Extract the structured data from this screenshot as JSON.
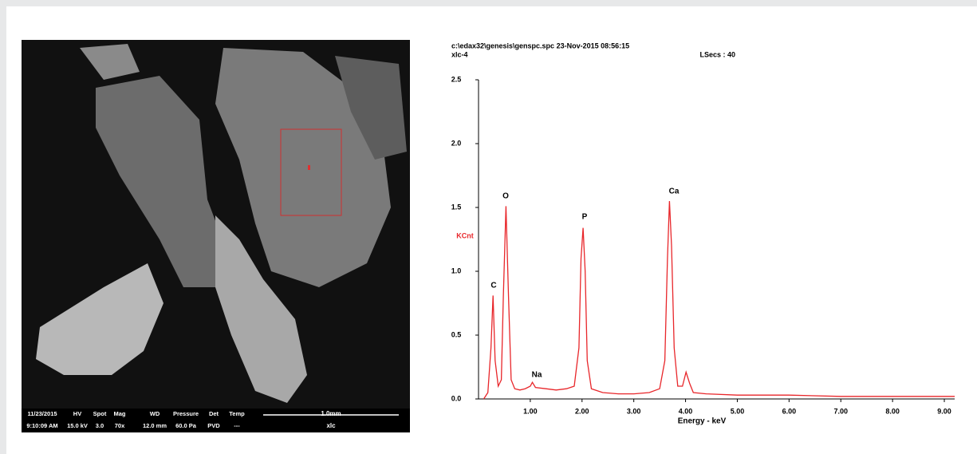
{
  "sem_image": {
    "info": [
      [
        "11/23/2015",
        "9:10:09 AM"
      ],
      [
        "HV",
        "15.0 kV"
      ],
      [
        "Spot",
        "3.0"
      ],
      [
        "Mag",
        "70x"
      ],
      [
        "WD",
        "12.0 mm"
      ],
      [
        "Pressure",
        "60.0 Pa"
      ],
      [
        "Det",
        "PVD"
      ],
      [
        "Temp",
        "---"
      ]
    ],
    "scale_bar": "1.0mm",
    "name": "xlc"
  },
  "chart_data": {
    "type": "line",
    "header": "c:\\edax32\\genesis\\genspc.spc  23-Nov-2015 08:56:15",
    "sample": "xlc-4",
    "live_secs": "LSecs :  40",
    "xlabel": "Energy - keV",
    "ylabel": "KCnt",
    "peak_labels": [
      "C",
      "O",
      "Na",
      "P",
      "Ca"
    ],
    "xlim": [
      0,
      9.2
    ],
    "xticks": [
      {
        "value": 1,
        "label": "1.00"
      },
      {
        "value": 2,
        "label": "2.00"
      },
      {
        "value": 3,
        "label": "3.00"
      },
      {
        "value": 4,
        "label": "4.00"
      },
      {
        "value": 5,
        "label": "5.00"
      },
      {
        "value": 6,
        "label": "6.00"
      },
      {
        "value": 7,
        "label": "7.00"
      },
      {
        "value": 8,
        "label": "8.00"
      },
      {
        "value": 9,
        "label": "9.00"
      }
    ],
    "ylim": [
      0,
      2.5
    ],
    "yticks": [
      {
        "value": 0,
        "label": "0.0"
      },
      {
        "value": 0.5,
        "label": "0.5"
      },
      {
        "value": 1,
        "label": "1.0"
      },
      {
        "value": 1.5,
        "label": "1.5"
      },
      {
        "value": 2,
        "label": "2.0"
      },
      {
        "value": 2.5,
        "label": "2.5"
      }
    ],
    "series": [
      {
        "color": "#e8262a",
        "x": [
          0.1,
          0.18,
          0.24,
          0.28,
          0.32,
          0.38,
          0.44,
          0.48,
          0.53,
          0.58,
          0.63,
          0.7,
          0.8,
          0.9,
          1.0,
          1.04,
          1.1,
          1.3,
          1.5,
          1.7,
          1.85,
          1.94,
          1.98,
          2.02,
          2.06,
          2.1,
          2.18,
          2.4,
          2.7,
          3.0,
          3.3,
          3.5,
          3.6,
          3.65,
          3.69,
          3.73,
          3.78,
          3.85,
          3.94,
          4.01,
          4.08,
          4.15,
          4.4,
          5.0,
          6.0,
          7.0,
          8.0,
          9.2
        ],
        "values": [
          0.0,
          0.05,
          0.4,
          0.81,
          0.3,
          0.1,
          0.15,
          0.8,
          1.51,
          0.8,
          0.15,
          0.08,
          0.07,
          0.08,
          0.1,
          0.13,
          0.09,
          0.08,
          0.07,
          0.08,
          0.1,
          0.4,
          1.1,
          1.34,
          1.0,
          0.3,
          0.08,
          0.05,
          0.04,
          0.04,
          0.05,
          0.08,
          0.3,
          1.1,
          1.55,
          1.2,
          0.4,
          0.1,
          0.1,
          0.21,
          0.12,
          0.05,
          0.04,
          0.03,
          0.03,
          0.02,
          0.02,
          0.02
        ]
      }
    ]
  }
}
